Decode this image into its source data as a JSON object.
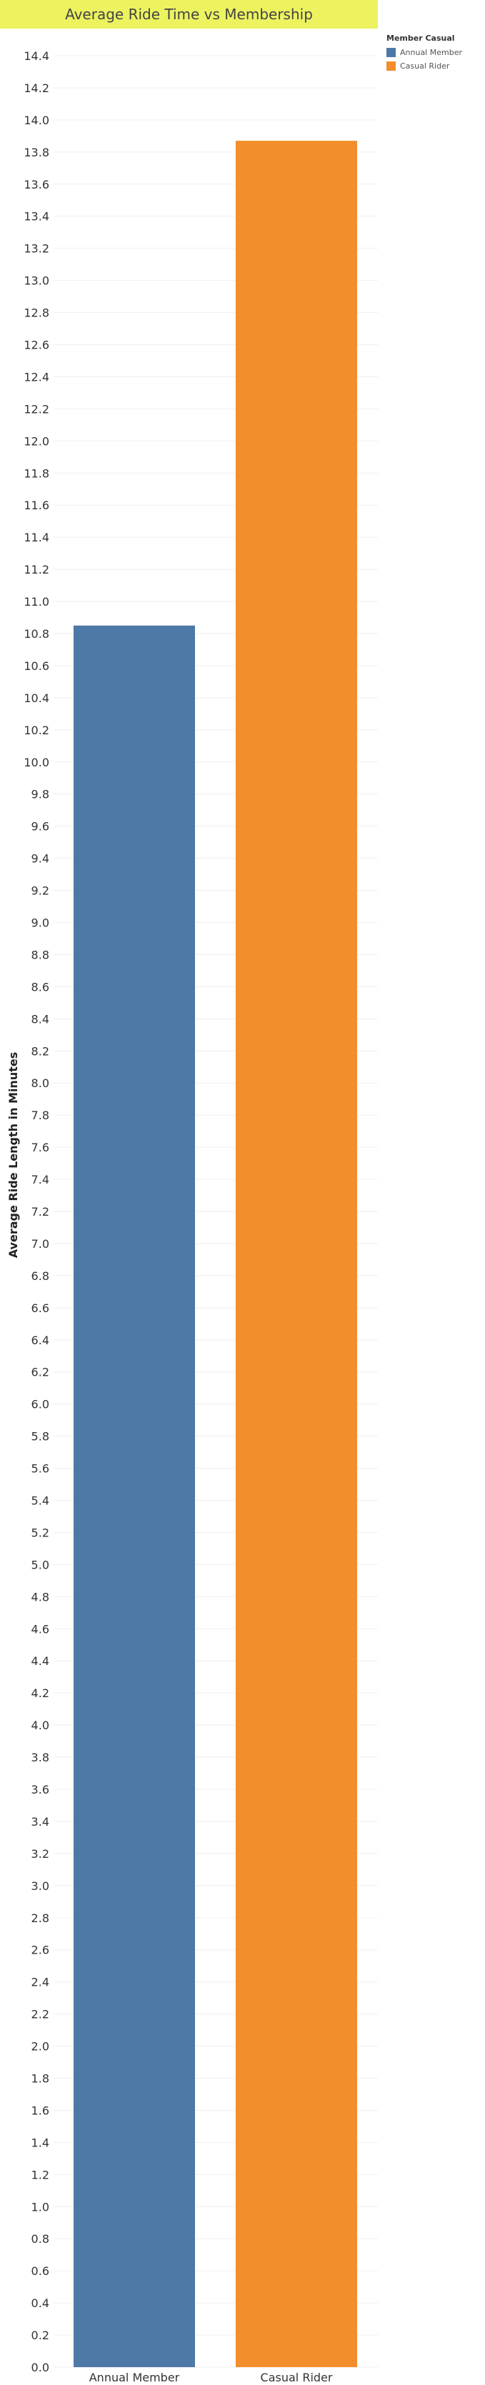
{
  "chart_data": {
    "type": "bar",
    "title": "Average Ride Time vs Membership",
    "ylabel": "Average Ride Length in Minutes",
    "xlabel": "",
    "categories": [
      "Annual Member",
      "Casual Rider"
    ],
    "values": [
      10.85,
      13.87
    ],
    "colors": [
      "#4e79a7",
      "#f28e2b"
    ],
    "ylim": [
      0,
      14.5
    ],
    "ytick_step": 0.2,
    "grid": true,
    "legend": {
      "title": "Member Casual",
      "placement": "top-right",
      "entries": [
        "Annual Member",
        "Casual Rider"
      ]
    }
  },
  "colors": {
    "title_background": "#ecf35f",
    "annual_member": "#4e79a7",
    "casual_rider": "#f28e2b"
  }
}
